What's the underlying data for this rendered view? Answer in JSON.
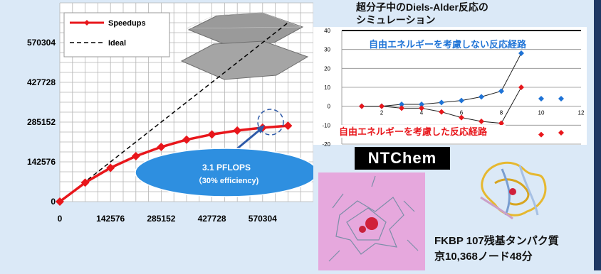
{
  "colors": {
    "background": "#dbe9f7",
    "speedups": "#e8161b",
    "ideal": "#000000",
    "series_blue": "#1e73d6",
    "series_red": "#e8161b",
    "label_blue": "#1e73d6",
    "label_red": "#e8161b",
    "ellipse": "#2e8fe0"
  },
  "left_chart": {
    "legend": {
      "speedups": "Speedups",
      "ideal": "Ideal"
    },
    "y_ticks": [
      "570304",
      "427728",
      "285152",
      "142576",
      "0"
    ],
    "x_ticks": [
      "0",
      "142576",
      "285152",
      "427728",
      "570304"
    ],
    "callout": {
      "line1": "3.1 PFLOPS",
      "line2": "（30% efficiency)"
    }
  },
  "right_chart": {
    "title_line1": "超分子中のDiels-Alder反応の",
    "title_line2": "シミュレーション",
    "label_blue": "自由エネルギーを考慮しない反応経路",
    "label_red": "自由エネルギーを考慮した反応経路",
    "y_ticks": [
      "40",
      "30",
      "20",
      "10",
      "0",
      "-10",
      "-20"
    ],
    "x_ticks": [
      "2",
      "4",
      "6",
      "8",
      "10",
      "12"
    ]
  },
  "ntchem": "NTChem",
  "fkbp": {
    "line1": "FKBP 107残基タンパク質",
    "line2": "京10,368ノード48分"
  },
  "chart_data": [
    {
      "type": "line",
      "xlim": [
        0,
        712880
      ],
      "ylim": [
        0,
        712880
      ],
      "x_ticks": [
        0,
        142576,
        285152,
        427728,
        570304
      ],
      "y_ticks": [
        0,
        142576,
        285152,
        427728,
        570304
      ],
      "series": [
        {
          "name": "Speedups",
          "x": [
            0,
            71288,
            142576,
            213864,
            285152,
            356440,
            427728,
            499016,
            570304,
            641592
          ],
          "y": [
            0,
            68000,
            121000,
            163000,
            196000,
            222000,
            241000,
            255000,
            265000,
            272000
          ]
        },
        {
          "name": "Ideal",
          "x": [
            0,
            640000
          ],
          "y": [
            0,
            640000
          ]
        }
      ],
      "annotation": "3.1 PFLOPS （30% efficiency)"
    },
    {
      "type": "line",
      "title": "超分子中のDiels-Alder反応の シミュレーション",
      "xlim": [
        0,
        12
      ],
      "ylim": [
        -20,
        40
      ],
      "series": [
        {
          "name": "自由エネルギーを考慮しない反応経路",
          "x": [
            1,
            2,
            3,
            4,
            5,
            6,
            7,
            8,
            9,
            10,
            11
          ],
          "y": [
            0,
            0,
            1,
            1,
            2,
            3,
            5,
            8,
            28,
            4,
            4
          ]
        },
        {
          "name": "自由エネルギーを考慮した反応経路",
          "x": [
            1,
            2,
            3,
            4,
            5,
            6,
            7,
            8,
            9,
            10,
            11
          ],
          "y": [
            0,
            0,
            -1,
            -1,
            -3,
            -6,
            -8,
            -9,
            10,
            -15,
            -14
          ]
        }
      ]
    }
  ]
}
